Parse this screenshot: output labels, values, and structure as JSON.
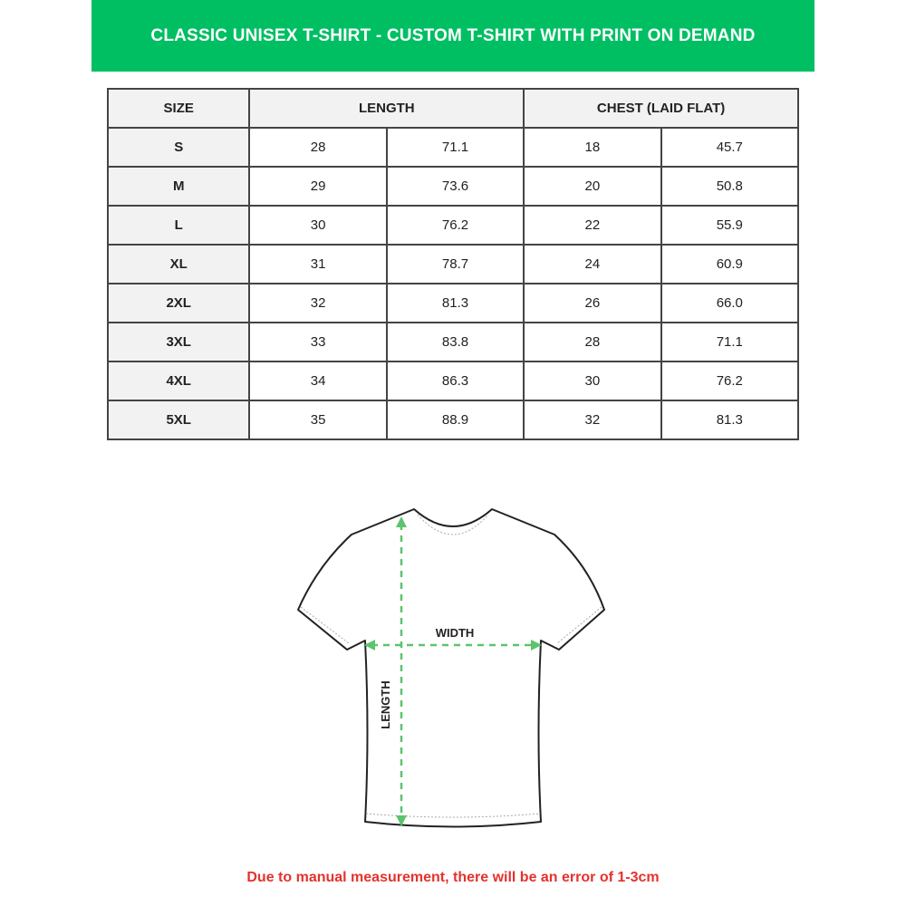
{
  "title": "CLASSIC UNISEX T-SHIRT - CUSTOM T-SHIRT WITH PRINT ON DEMAND",
  "table": {
    "headers": [
      "SIZE",
      "LENGTH",
      "CHEST (LAID FLAT)"
    ],
    "rows": [
      {
        "size": "S",
        "length_in": "28",
        "length_cm": "71.1",
        "chest_in": "18",
        "chest_cm": "45.7"
      },
      {
        "size": "M",
        "length_in": "29",
        "length_cm": "73.6",
        "chest_in": "20",
        "chest_cm": "50.8"
      },
      {
        "size": "L",
        "length_in": "30",
        "length_cm": "76.2",
        "chest_in": "22",
        "chest_cm": "55.9"
      },
      {
        "size": "XL",
        "length_in": "31",
        "length_cm": "78.7",
        "chest_in": "24",
        "chest_cm": "60.9"
      },
      {
        "size": "2XL",
        "length_in": "32",
        "length_cm": "81.3",
        "chest_in": "26",
        "chest_cm": "66.0"
      },
      {
        "size": "3XL",
        "length_in": "33",
        "length_cm": "83.8",
        "chest_in": "28",
        "chest_cm": "71.1"
      },
      {
        "size": "4XL",
        "length_in": "34",
        "length_cm": "86.3",
        "chest_in": "30",
        "chest_cm": "76.2"
      },
      {
        "size": "5XL",
        "length_in": "35",
        "length_cm": "88.9",
        "chest_in": "32",
        "chest_cm": "81.3"
      }
    ]
  },
  "diagram": {
    "width_label": "WIDTH",
    "length_label": "LENGTH",
    "arrow_color": "#5cc46e"
  },
  "note": "Due to manual measurement, there will be an error of 1-3cm",
  "colors": {
    "banner": "#00bf63",
    "note": "#e5322d"
  }
}
